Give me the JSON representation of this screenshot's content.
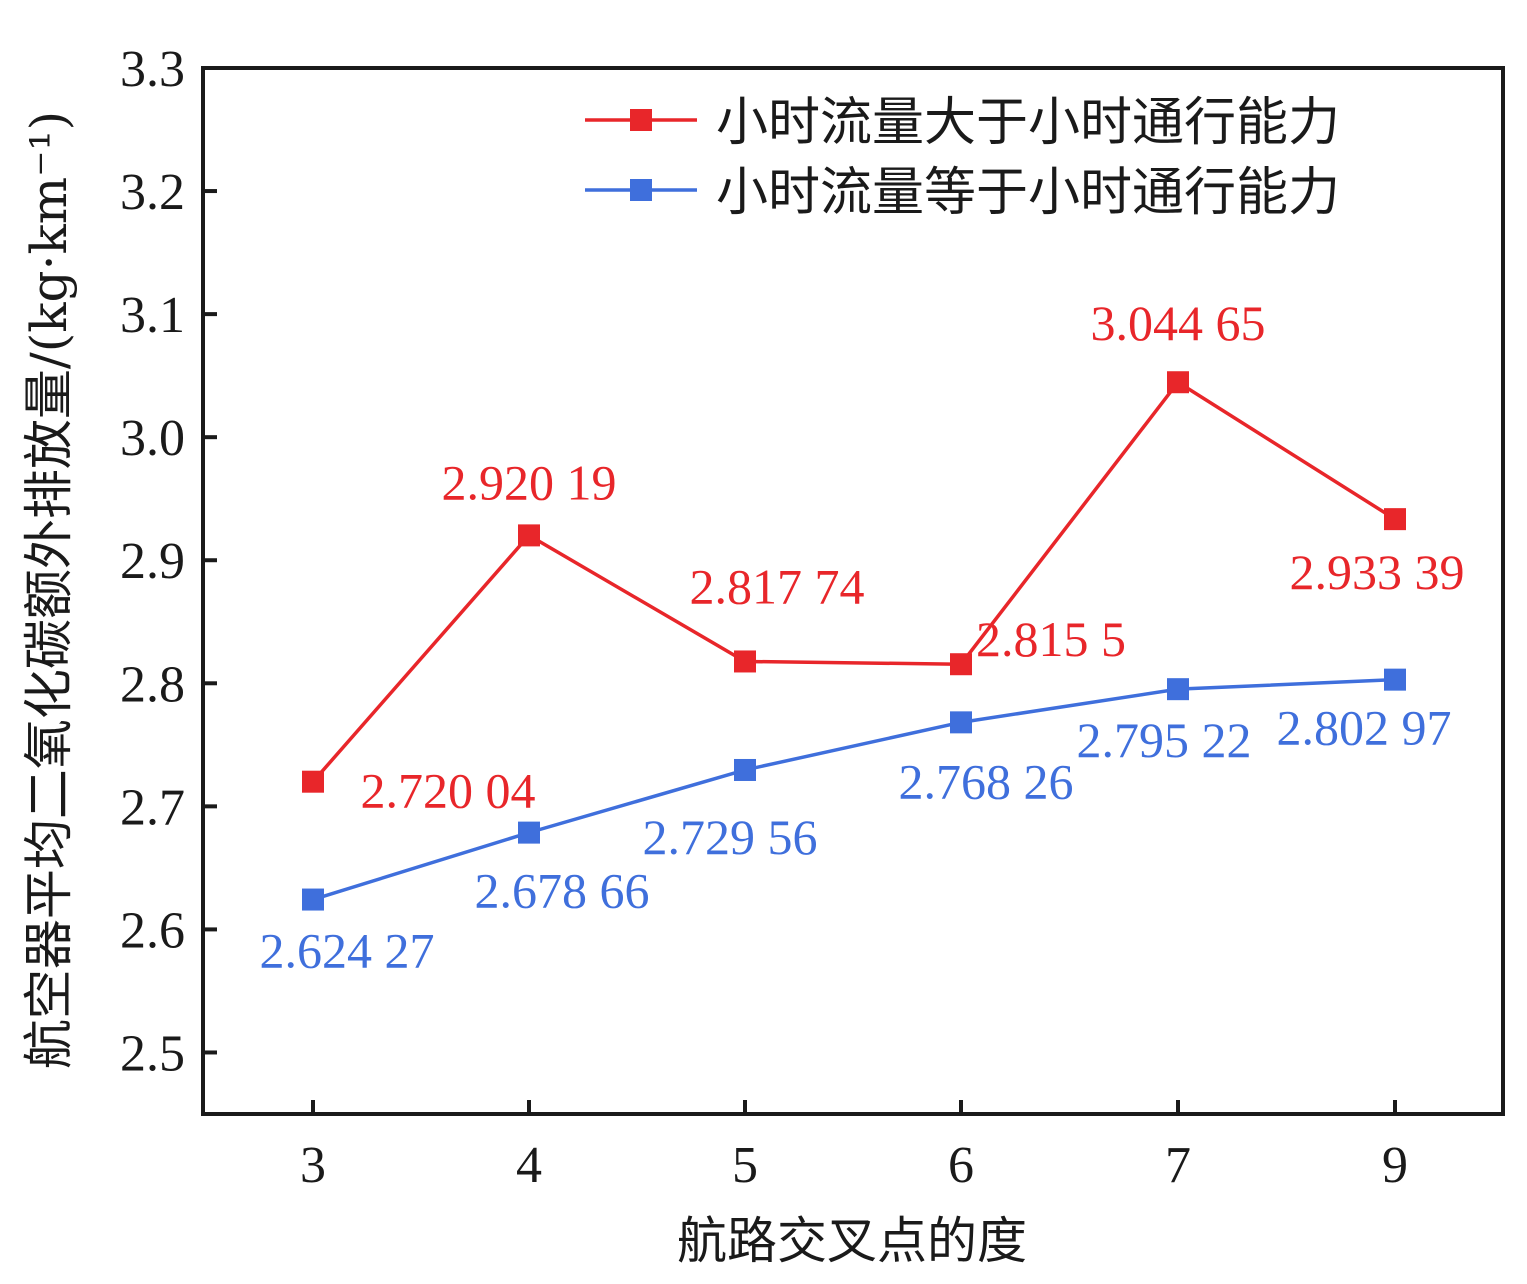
{
  "chart_data": {
    "type": "line",
    "title": "",
    "xlabel": "航路交叉点的度",
    "ylabel": "航空器平均二氧化碳额外排放量/(kg·km⁻¹)",
    "categories": [
      "3",
      "4",
      "5",
      "6",
      "7",
      "9"
    ],
    "ylim": [
      2.45,
      3.3
    ],
    "yticks": [
      2.5,
      2.6,
      2.7,
      2.8,
      2.9,
      3.0,
      3.1,
      3.2,
      3.3
    ],
    "ytick_labels": [
      "2.5",
      "2.6",
      "2.7",
      "2.8",
      "2.9",
      "3.0",
      "3.1",
      "3.2",
      "3.3"
    ],
    "grid": false,
    "legend_position": "top-right",
    "series": [
      {
        "name": "小时流量大于小时通行能力",
        "color": "#e8262a",
        "marker": "square",
        "values": [
          2.72004,
          2.92019,
          2.81774,
          2.8155,
          3.04465,
          2.93339
        ],
        "labels": [
          "2.720 04",
          "2.920 19",
          "2.817 74",
          "2.815 5",
          "3.044 65",
          "2.933 39"
        ]
      },
      {
        "name": "小时流量等于小时通行能力",
        "color": "#3f6fdc",
        "marker": "square",
        "values": [
          2.62427,
          2.67866,
          2.72956,
          2.76826,
          2.79522,
          2.80297
        ],
        "labels": [
          "2.624 27",
          "2.678 66",
          "2.729 56",
          "2.768 26",
          "2.795 22",
          "2.802 97"
        ]
      }
    ]
  }
}
